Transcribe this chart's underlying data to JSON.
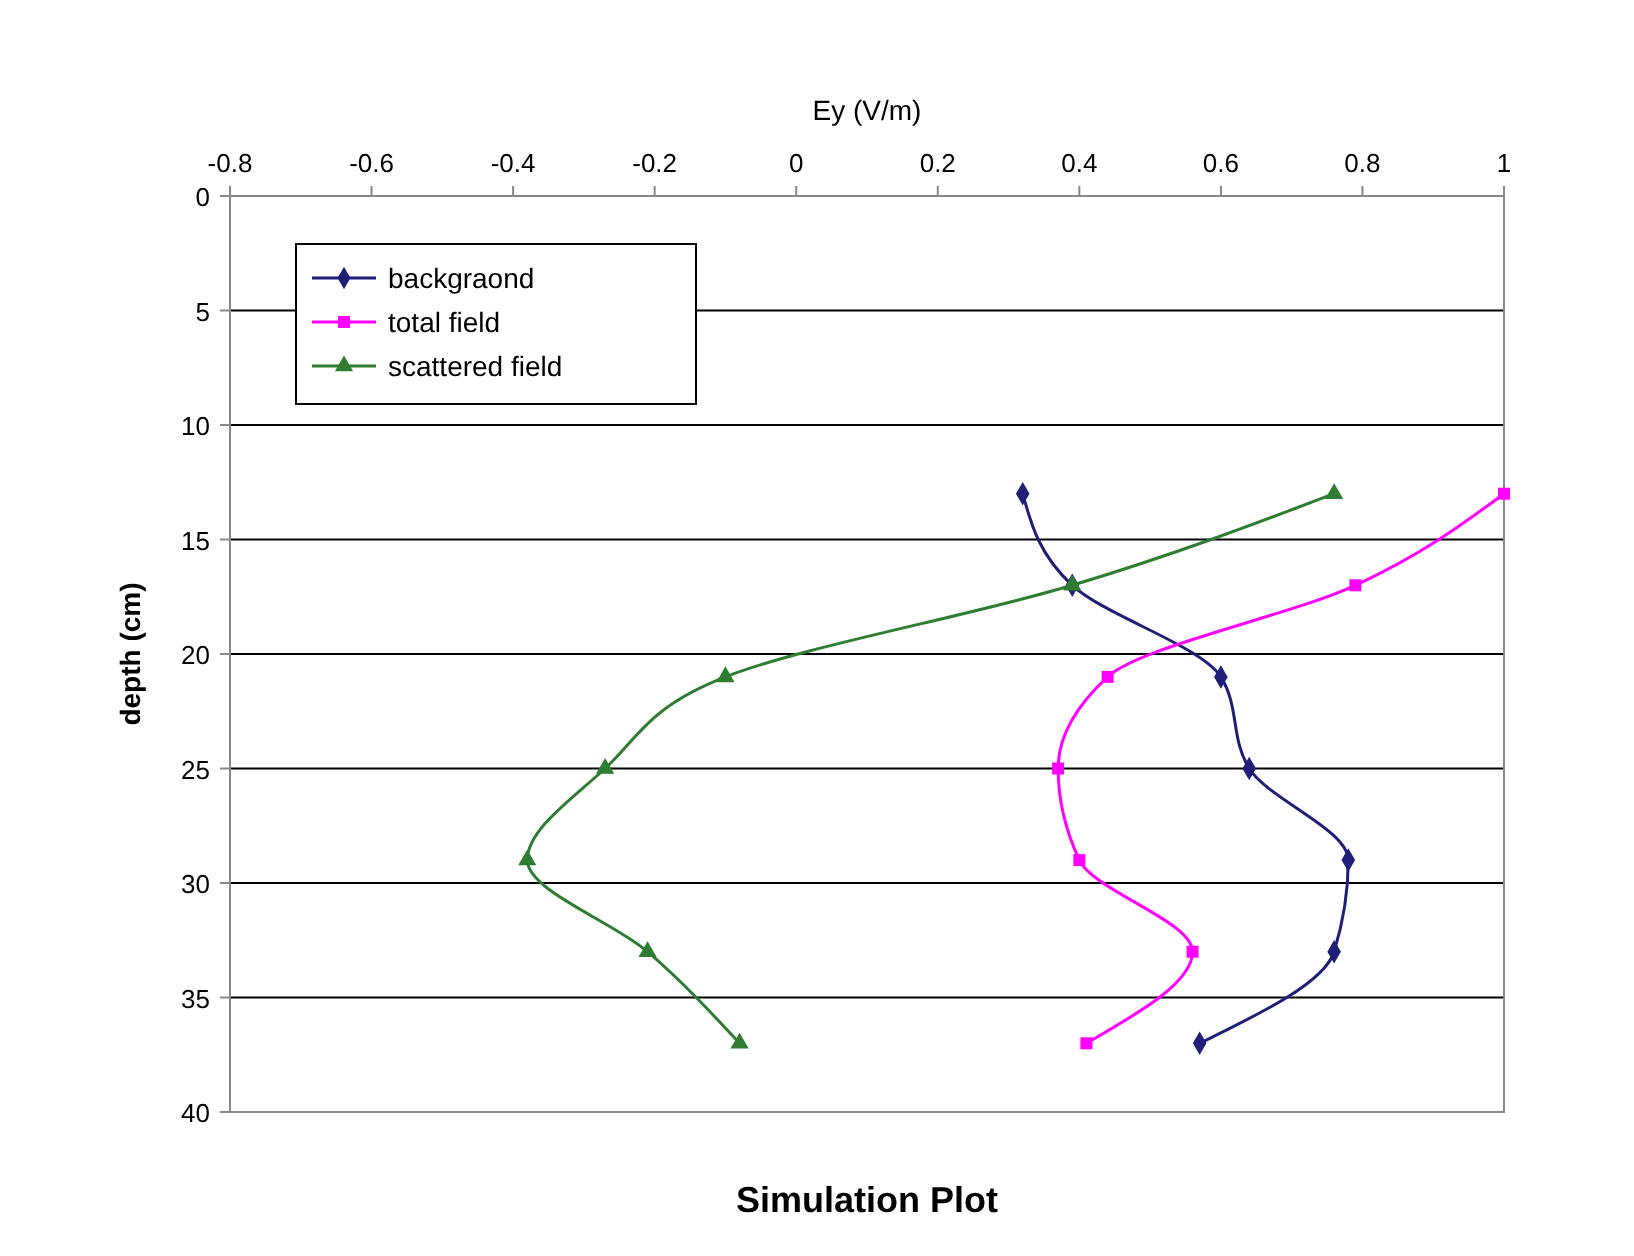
{
  "chart_data": {
    "type": "line",
    "title": "Simulation Plot",
    "xlabel": "Ey (V/m)",
    "ylabel": "depth (cm)",
    "xlim": [
      -0.8,
      1
    ],
    "xticks": [
      -0.8,
      -0.6,
      -0.4,
      -0.2,
      0,
      0.2,
      0.4,
      0.6,
      0.8,
      1
    ],
    "ylim": [
      40,
      0
    ],
    "yticks": [
      0,
      5,
      10,
      15,
      20,
      25,
      30,
      35,
      40
    ],
    "grid": "y",
    "legend": "top left",
    "series": [
      {
        "name": "backgraond",
        "color": "#1f1f78",
        "marker": "diamond",
        "x": [
          0.32,
          0.39,
          0.6,
          0.64,
          0.78,
          0.76,
          0.57
        ],
        "values": [
          13,
          17,
          21,
          25,
          29,
          33,
          37
        ]
      },
      {
        "name": "total field",
        "color": "#ff00ff",
        "marker": "square",
        "x": [
          1.0,
          0.79,
          0.44,
          0.37,
          0.4,
          0.56,
          0.41
        ],
        "values": [
          13,
          17,
          21,
          25,
          29,
          33,
          37
        ]
      },
      {
        "name": "scattered field",
        "color": "#2e7d32",
        "marker": "triangle",
        "x": [
          0.76,
          0.39,
          -0.1,
          -0.27,
          -0.38,
          -0.21,
          -0.08
        ],
        "values": [
          13,
          17,
          21,
          25,
          29,
          33,
          37
        ]
      }
    ]
  }
}
